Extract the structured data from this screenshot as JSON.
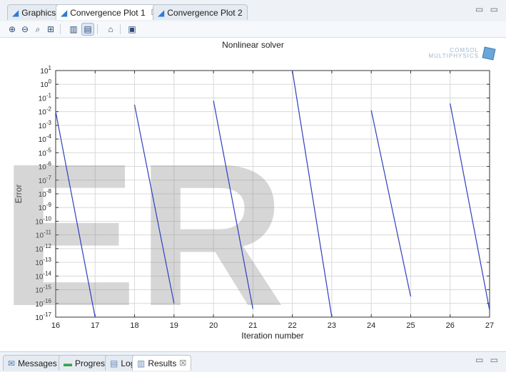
{
  "tabs": [
    {
      "label": "Graphics",
      "close": ""
    },
    {
      "label": "Convergence Plot 1",
      "close": "☒"
    },
    {
      "label": "Convergence Plot 2",
      "close": ""
    }
  ],
  "window_controls": "▭ ▭",
  "toolbar": {
    "icons": [
      "zoom-in-icon",
      "zoom-out-icon",
      "zoom-box-icon",
      "zoom-extents-icon",
      "bar-plot-icon",
      "grid-icon",
      "lock-icon",
      "camera-icon"
    ]
  },
  "plot": {
    "title": "Nonlinear solver",
    "logo_line1": "COMSOL",
    "logo_line2": "MULTIPHYSICS"
  },
  "chart_data": {
    "type": "line",
    "title": "Nonlinear solver",
    "xlabel": "Iteration number",
    "ylabel": "Error",
    "xlim": [
      16,
      27
    ],
    "ylim_exponent": [
      -17,
      1
    ],
    "yscale": "log",
    "x_ticks": [
      "16",
      "17",
      "18",
      "19",
      "20",
      "21",
      "22",
      "23",
      "24",
      "25",
      "26",
      "27"
    ],
    "y_ticks": [
      "10^1",
      "10^0",
      "10^-1",
      "10^-2",
      "10^-3",
      "10^-4",
      "10^-5",
      "10^-6",
      "10^-7",
      "10^-8",
      "10^-9",
      "10^-10",
      "10^-11",
      "10^-12",
      "10^-13",
      "10^-14",
      "10^-15",
      "10^-16",
      "10^-17"
    ],
    "grid": true,
    "color": "#2f3fbf",
    "segments": [
      {
        "x": [
          16,
          17
        ],
        "y_exp": [
          -2,
          -17
        ]
      },
      {
        "x": [
          18,
          19
        ],
        "y_exp": [
          -1.5,
          -16
        ]
      },
      {
        "x": [
          20,
          21
        ],
        "y_exp": [
          -1.2,
          -16.4
        ]
      },
      {
        "x": [
          22,
          23
        ],
        "y_exp": [
          1,
          -17
        ]
      },
      {
        "x": [
          24,
          25
        ],
        "y_exp": [
          -1.9,
          -15.5
        ]
      },
      {
        "x": [
          26,
          27
        ],
        "y_exp": [
          -1.4,
          -16.5
        ]
      }
    ]
  },
  "watermark": "ER",
  "bottom_tabs": [
    {
      "label": "Messages",
      "close": ""
    },
    {
      "label": "Progress",
      "close": ""
    },
    {
      "label": "Log",
      "close": ""
    },
    {
      "label": "Results",
      "close": "☒"
    }
  ]
}
